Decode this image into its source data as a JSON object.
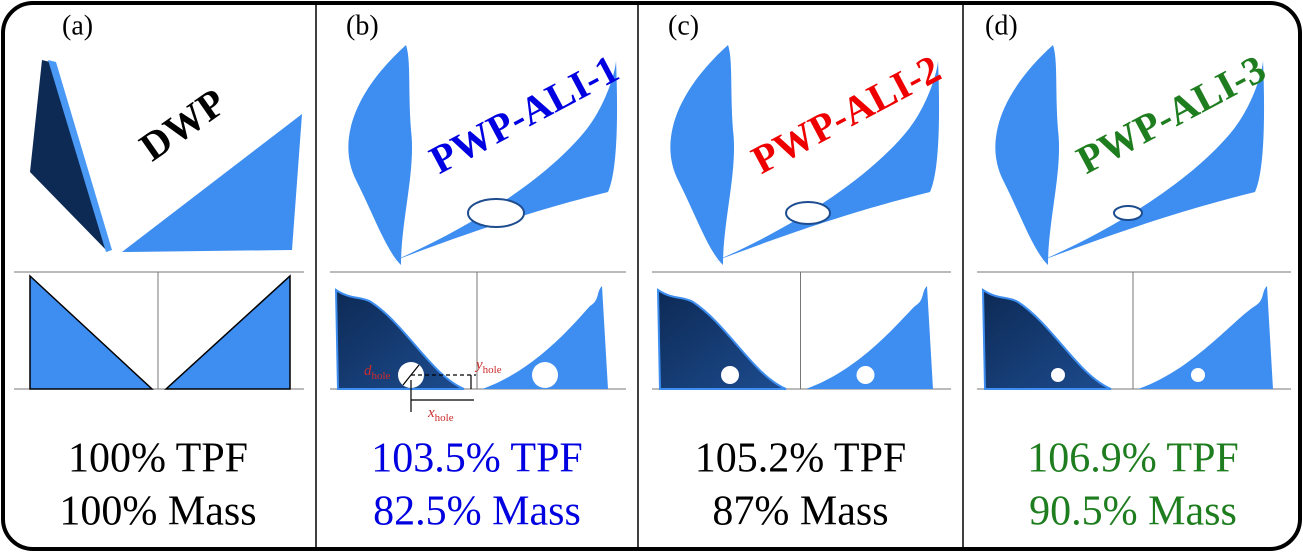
{
  "panels": [
    {
      "label": "(a)",
      "name": "DWP",
      "name_color": "#000000",
      "tpf": "100% TPF",
      "mass": "100% Mass",
      "text_color": "#000000"
    },
    {
      "label": "(b)",
      "name": "PWP-ALI-1",
      "name_color": "#0000e0",
      "tpf": "103.5% TPF",
      "mass": "82.5% Mass",
      "text_color": "#0000e0"
    },
    {
      "label": "(c)",
      "name": "PWP-ALI-2",
      "name_color": "#ee0000",
      "tpf": "105.2% TPF",
      "mass": "87% Mass",
      "text_color": "#000000"
    },
    {
      "label": "(d)",
      "name": "PWP-ALI-3",
      "name_color": "#1e7d1e",
      "tpf": "106.9% TPF",
      "mass": "90.5% Mass",
      "text_color": "#1e7d1e"
    }
  ],
  "annotations": {
    "d_hole": {
      "main": "d",
      "sub": "hole"
    },
    "y_hole": {
      "main": "y",
      "sub": "hole"
    },
    "x_hole": {
      "main": "x",
      "sub": "hole"
    }
  }
}
